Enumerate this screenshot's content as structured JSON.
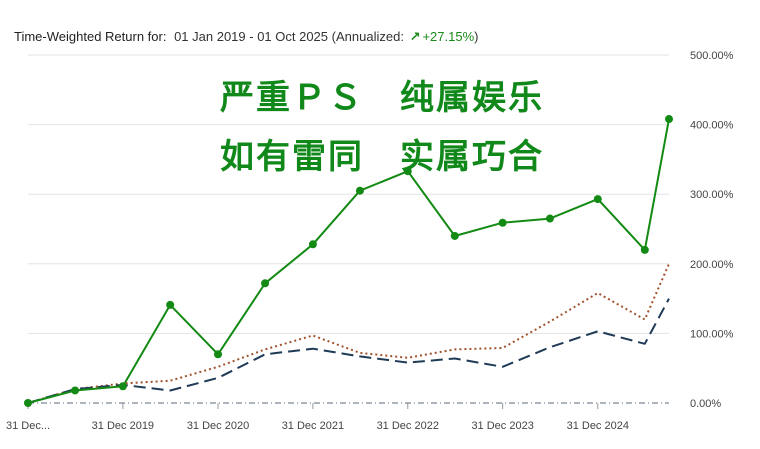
{
  "header": {
    "label": "Time-Weighted Return for:",
    "range": "01 Jan 2019 - 01 Oct 2025",
    "annualized_label": "(Annualized:",
    "arrow": "↗",
    "annualized_value": "+27.15%",
    "close_paren": ")"
  },
  "overlay": {
    "line1": "严重ＰＳ　纯属娱乐",
    "line2": "如有雷同　实属巧合"
  },
  "colors": {
    "portfolio": "#138a13",
    "benchmark_1": "#a0522d",
    "benchmark_2": "#1f3b57",
    "baseline": "#5a6b7c",
    "grid": "#e3e3e3"
  },
  "chart_data": {
    "type": "line",
    "x": [
      "2018-12-31",
      "2019-06-30",
      "2019-12-31",
      "2020-06-30",
      "2020-12-31",
      "2021-06-30",
      "2021-12-31",
      "2022-06-30",
      "2022-12-31",
      "2023-06-30",
      "2023-12-31",
      "2024-06-30",
      "2024-12-31",
      "2025-06-30",
      "2025-10-01"
    ],
    "x_tick_labels": [
      "31 Dec...",
      "31 Dec 2019",
      "31 Dec 2020",
      "31 Dec 2021",
      "31 Dec 2022",
      "31 Dec 2023",
      "31 Dec 2024"
    ],
    "y_tick_labels": [
      "0.00%",
      "100.00%",
      "200.00%",
      "300.00%",
      "400.00%",
      "500.00%"
    ],
    "ylim": [
      0,
      500
    ],
    "y_unit": "%",
    "grid": true,
    "series": [
      {
        "style": "solid with markers",
        "color": "#138a13",
        "x": [
          "2018-12-31",
          "2019-06-30",
          "2019-12-31",
          "2020-06-30",
          "2020-12-31",
          "2021-06-30",
          "2021-12-31",
          "2022-06-30",
          "2022-12-31",
          "2023-06-30",
          "2023-12-31",
          "2024-06-30",
          "2024-12-31",
          "2025-06-30",
          "2025-10-01"
        ],
        "values": [
          0,
          18,
          24,
          141,
          70,
          172,
          228,
          305,
          333,
          240,
          259,
          265,
          293,
          220,
          408
        ]
      },
      {
        "style": "dotted",
        "color": "#a0522d",
        "x": [
          "2018-12-31",
          "2019-06-30",
          "2019-12-31",
          "2020-06-30",
          "2020-12-31",
          "2021-06-30",
          "2021-12-31",
          "2022-06-30",
          "2022-12-31",
          "2023-06-30",
          "2023-12-31",
          "2024-06-30",
          "2024-12-31",
          "2025-06-30",
          "2025-10-01"
        ],
        "values": [
          0,
          20,
          28,
          32,
          52,
          77,
          97,
          72,
          65,
          77,
          79,
          117,
          158,
          120,
          200
        ]
      },
      {
        "style": "dashed",
        "color": "#1f3b57",
        "x": [
          "2018-12-31",
          "2019-06-30",
          "2019-12-31",
          "2020-06-30",
          "2020-12-31",
          "2021-06-30",
          "2021-12-31",
          "2022-06-30",
          "2022-12-31",
          "2023-06-30",
          "2023-12-31",
          "2024-06-30",
          "2024-12-31",
          "2025-06-30",
          "2025-10-01"
        ],
        "values": [
          0,
          20,
          26,
          18,
          36,
          70,
          78,
          67,
          58,
          64,
          52,
          80,
          103,
          85,
          150
        ]
      },
      {
        "style": "dash-dot",
        "color": "#5a6b7c",
        "x": [
          "2018-12-31",
          "2025-10-01"
        ],
        "values": [
          0,
          0
        ]
      }
    ]
  }
}
